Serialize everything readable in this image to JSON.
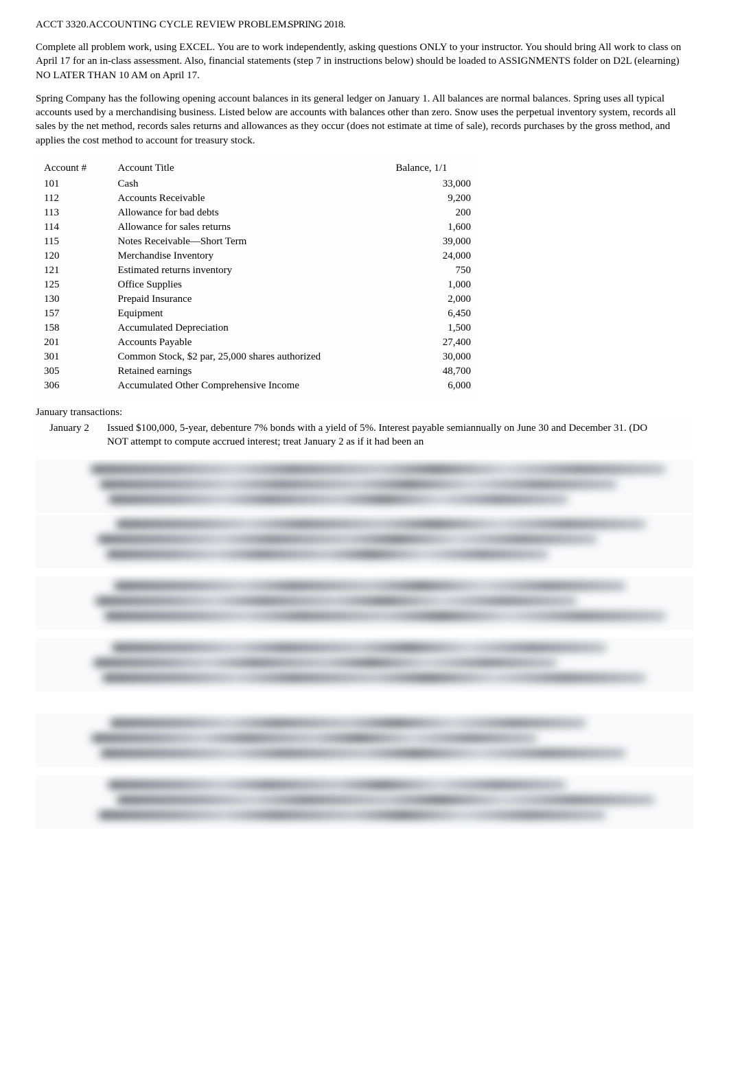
{
  "title": {
    "main": "ACCT 3320.ACCOUNTING CYCLE REVIEW PROBLEM.",
    "sem_overlay": "SPRING 2018."
  },
  "intro_p1": "Complete all problem work, using EXCEL. You are to work independently, asking questions ONLY to your instructor.   You should bring All work to class on April 17 for an in-class assessment.   Also, financial statements (step 7 in instructions below) should be loaded to ASSIGNMENTS folder on D2L (elearning) NO LATER THAN 10 AM on April 17.",
  "intro_p2": "Spring Company has the following opening account balances in its general ledger on January 1. All balances are normal balances. Spring uses all typical accounts used by a merchandising business.  Listed below are accounts with balances other than zero. Snow uses the perpetual inventory system, records all sales by the net method, records sales returns and allowances as they occur (does not estimate at time of sale), records purchases by the gross method, and applies the cost method to account for treasury stock.",
  "accounts": {
    "head_num": "Account #",
    "head_title": "Account Title",
    "head_bal": "Balance, 1/1",
    "rows": [
      {
        "num": "101",
        "title": "Cash",
        "bal": "33,000"
      },
      {
        "num": "112",
        "title": "Accounts Receivable",
        "bal": "9,200"
      },
      {
        "num": "113",
        "title": "Allowance for bad debts",
        "bal": "200"
      },
      {
        "num": "114",
        "title": "Allowance for sales returns",
        "bal": "1,600"
      },
      {
        "num": "115",
        "title": "Notes Receivable—Short Term",
        "bal": "39,000"
      },
      {
        "num": "120",
        "title": "Merchandise Inventory",
        "bal": "24,000"
      },
      {
        "num": "121",
        "title": "Estimated returns inventory",
        "bal": "750"
      },
      {
        "num": "125",
        "title": "Office Supplies",
        "bal": "1,000"
      },
      {
        "num": "130",
        "title": "Prepaid Insurance",
        "bal": "2,000"
      },
      {
        "num": "157",
        "title": "Equipment",
        "bal": "6,450"
      },
      {
        "num": "158",
        "title": "Accumulated Depreciation",
        "bal": "1,500"
      },
      {
        "num": "201",
        "title": "Accounts Payable",
        "bal": "27,400"
      },
      {
        "num": "301",
        "title": "Common Stock, $2 par, 25,000 shares authorized",
        "bal": "30,000"
      },
      {
        "num": "305",
        "title": "Retained earnings",
        "bal": "48,700"
      },
      {
        "num": "306",
        "title": "Accumulated Other Comprehensive Income",
        "bal": "6,000"
      }
    ]
  },
  "trans_head": "January transactions:",
  "trans": {
    "date": "January 2",
    "text": "Issued $100,000, 5-year, debenture 7% bonds with a yield of 5%.   Interest payable semiannually on June 30 and December 31. (DO NOT attempt to compute accrued interest; treat January 2 as if it had been an"
  },
  "blur": {
    "bg_light": "#fafafb",
    "row_tops": [
      0,
      80,
      170,
      260,
      370,
      460
    ],
    "line_offsets": [
      8,
      30,
      52
    ],
    "colors": [
      "#5d6066",
      "#808490",
      "#b8bcc4",
      "#6a6e78"
    ]
  }
}
